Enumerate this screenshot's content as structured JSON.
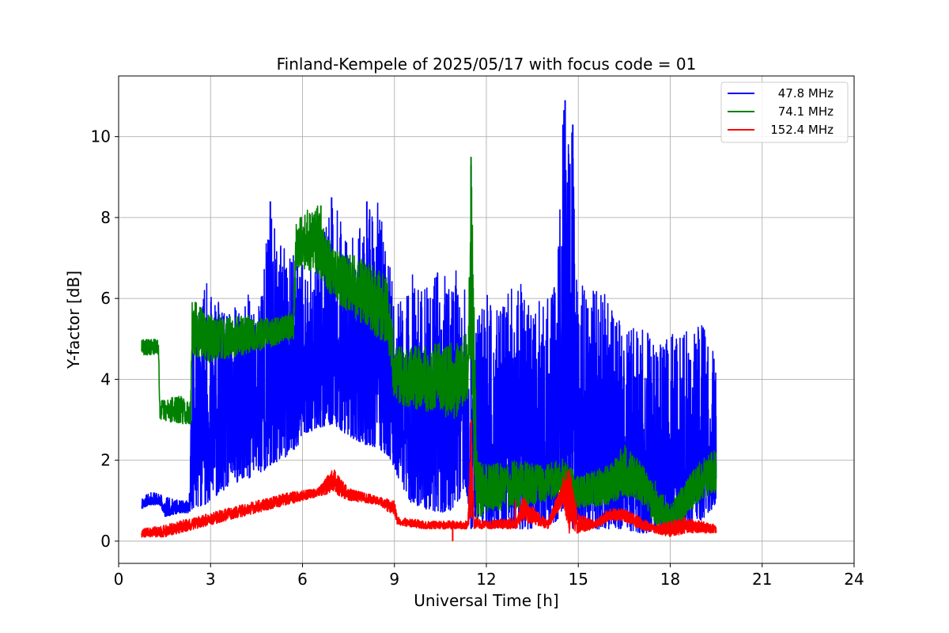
{
  "chart_data": {
    "type": "line",
    "title": "Finland-Kempele of 2025/05/17 with focus code = 01",
    "xlabel": "Universal Time [h]",
    "ylabel": "Y-factor [dB]",
    "xlim": [
      0,
      24
    ],
    "ylim": [
      -0.55,
      11.5
    ],
    "xticks": [
      0,
      3,
      6,
      9,
      12,
      15,
      18,
      21,
      24
    ],
    "yticks": [
      0,
      2,
      4,
      6,
      8,
      10
    ],
    "xtick_labels": [
      "0",
      "3",
      "6",
      "9",
      "12",
      "15",
      "18",
      "21",
      "24"
    ],
    "ytick_labels": [
      "0",
      "2",
      "4",
      "6",
      "8",
      "10"
    ],
    "grid": true,
    "legend_position": "top-right",
    "series": [
      {
        "name": "47.8 MHz",
        "color": "#0000ff",
        "x": [
          0.75,
          1.0,
          1.35,
          1.5,
          2.0,
          2.3,
          2.4,
          2.8,
          3.0,
          3.5,
          4.0,
          4.5,
          5.0,
          5.5,
          5.8,
          6.0,
          6.5,
          7.0,
          7.5,
          8.0,
          8.5,
          8.9,
          9.0,
          9.3,
          9.6,
          10.0,
          10.5,
          11.0,
          11.3,
          11.5,
          11.7,
          12.0,
          12.5,
          13.0,
          13.5,
          14.0,
          14.3,
          14.5,
          14.6,
          14.8,
          15.0,
          15.5,
          16.0,
          16.5,
          17.0,
          17.5,
          18.0,
          18.5,
          19.0,
          19.5
        ],
        "low": [
          0.8,
          0.9,
          0.9,
          0.6,
          0.7,
          0.7,
          0.8,
          0.9,
          1.0,
          1.3,
          1.5,
          1.6,
          1.9,
          2.1,
          2.3,
          2.6,
          2.8,
          2.9,
          2.6,
          2.4,
          2.3,
          2.0,
          1.8,
          1.2,
          0.9,
          0.8,
          0.7,
          0.8,
          1.4,
          0.3,
          0.5,
          0.4,
          0.3,
          0.3,
          0.3,
          0.4,
          0.5,
          0.8,
          1.2,
          0.3,
          0.4,
          0.3,
          0.3,
          0.3,
          0.2,
          0.2,
          0.2,
          0.3,
          0.5,
          0.9
        ],
        "high": [
          1.1,
          1.2,
          1.2,
          1.1,
          1.0,
          1.0,
          5.3,
          6.4,
          6.4,
          5.6,
          5.9,
          6.3,
          8.4,
          7.0,
          7.1,
          6.9,
          7.0,
          8.5,
          7.3,
          8.1,
          8.4,
          6.6,
          5.7,
          6.1,
          6.6,
          6.3,
          6.8,
          6.7,
          6.2,
          3.0,
          5.6,
          6.1,
          6.0,
          6.4,
          6.2,
          6.0,
          6.4,
          10.9,
          10.3,
          10.3,
          6.5,
          6.3,
          6.1,
          5.2,
          5.3,
          5.0,
          5.1,
          5.3,
          5.5,
          4.7
        ],
        "spikes": [
          [
            4.95,
            8.4
          ],
          [
            6.95,
            8.5
          ],
          [
            8.1,
            8.4
          ],
          [
            11.5,
            9.3
          ],
          [
            14.5,
            10.3
          ],
          [
            14.57,
            10.9
          ],
          [
            14.82,
            10.3
          ]
        ]
      },
      {
        "name": "74.1 MHz",
        "color": "#008000",
        "x": [
          0.75,
          1.3,
          1.35,
          2.0,
          2.35,
          2.4,
          3.0,
          4.0,
          5.0,
          5.7,
          5.8,
          6.5,
          7.0,
          8.0,
          8.8,
          9.0,
          10.0,
          11.0,
          11.4,
          11.5,
          11.55,
          11.7,
          12.0,
          13.0,
          14.0,
          14.5,
          15.0,
          16.0,
          16.5,
          17.0,
          17.5,
          18.0,
          18.5,
          19.0,
          19.5
        ],
        "low": [
          4.6,
          4.6,
          3.0,
          2.9,
          2.9,
          4.6,
          4.4,
          4.6,
          4.8,
          5.0,
          6.8,
          6.6,
          6.0,
          5.3,
          4.8,
          3.4,
          3.2,
          3.0,
          3.5,
          4.5,
          2.0,
          0.5,
          0.7,
          0.8,
          1.0,
          1.1,
          0.8,
          0.9,
          1.1,
          1.0,
          0.4,
          0.1,
          0.6,
          1.0,
          1.2
        ],
        "high": [
          5.0,
          5.0,
          3.5,
          3.6,
          3.5,
          6.0,
          5.6,
          5.6,
          5.5,
          5.7,
          8.1,
          8.3,
          7.2,
          7.0,
          6.5,
          4.8,
          4.9,
          4.9,
          5.2,
          9.5,
          8.0,
          2.0,
          1.9,
          2.0,
          1.9,
          2.1,
          1.6,
          1.9,
          2.4,
          2.0,
          1.5,
          0.9,
          1.5,
          2.0,
          2.3
        ],
        "spikes": [
          [
            11.5,
            9.5
          ],
          [
            6.6,
            8.3
          ]
        ]
      },
      {
        "name": "152.4 MHz",
        "color": "#ff0000",
        "x": [
          0.75,
          1.5,
          2.5,
          3.5,
          4.5,
          5.5,
          6.5,
          7.0,
          7.5,
          8.5,
          9.0,
          9.1,
          10.0,
          11.0,
          11.4,
          11.5,
          11.6,
          12.0,
          13.0,
          13.2,
          14.0,
          14.5,
          14.7,
          15.0,
          15.5,
          16.0,
          16.5,
          17.0,
          17.5,
          18.0,
          18.5,
          19.0,
          19.5
        ],
        "low": [
          0.1,
          0.1,
          0.3,
          0.5,
          0.7,
          0.9,
          1.1,
          1.2,
          1.0,
          0.9,
          0.6,
          0.4,
          0.3,
          0.3,
          0.3,
          0.6,
          0.3,
          0.3,
          0.3,
          0.5,
          0.3,
          0.9,
          0.2,
          0.2,
          0.3,
          0.5,
          0.5,
          0.3,
          0.2,
          0.1,
          0.2,
          0.2,
          0.2
        ],
        "high": [
          0.3,
          0.4,
          0.6,
          0.8,
          1.0,
          1.2,
          1.3,
          1.8,
          1.3,
          1.1,
          1.0,
          0.6,
          0.5,
          0.5,
          0.5,
          3.0,
          0.6,
          0.5,
          0.6,
          1.1,
          0.5,
          1.6,
          1.9,
          0.7,
          0.5,
          0.8,
          0.8,
          0.6,
          0.4,
          0.5,
          0.6,
          0.5,
          0.4
        ],
        "spikes": [
          [
            10.9,
            0.0
          ],
          [
            11.5,
            3.0
          ],
          [
            12.95,
            1.0
          ]
        ]
      }
    ]
  }
}
